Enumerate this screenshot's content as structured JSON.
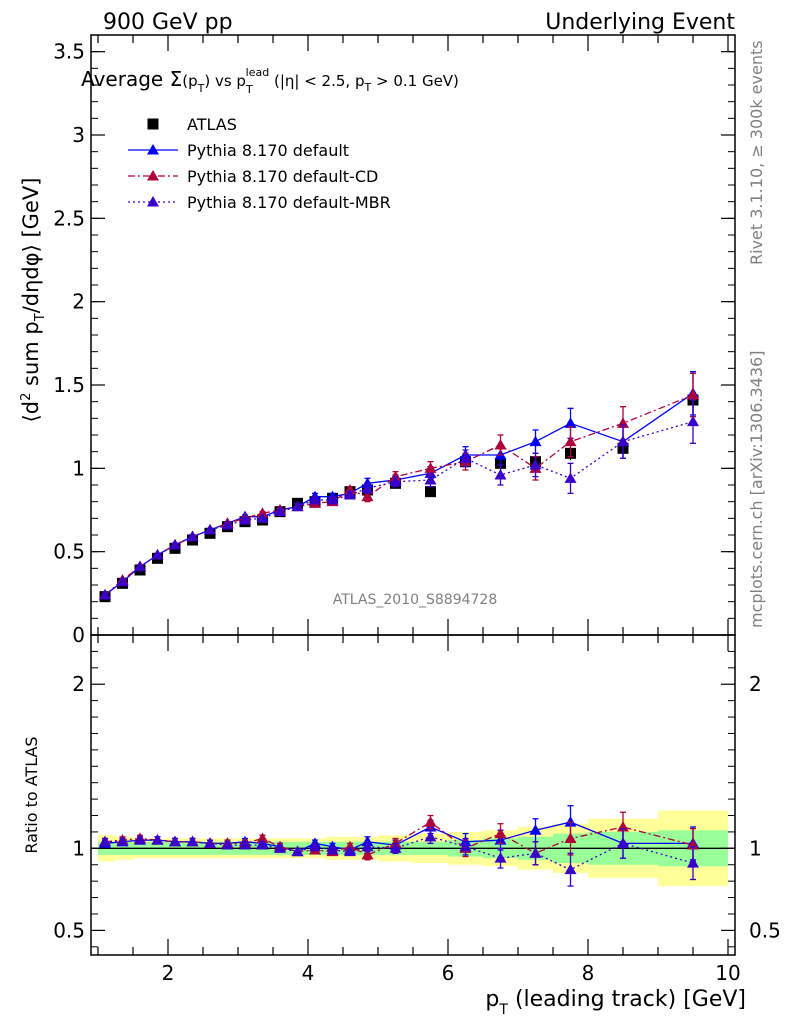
{
  "header": {
    "left": "900 GeV pp",
    "right": "Underlying Event"
  },
  "side_labels": {
    "rivet": "Rivet 3.1.10, ≥ 300k events",
    "mcplots": "mcplots.cern.ch [arXiv:1306.3436]"
  },
  "watermark": "ATLAS_2010_S8894728",
  "chart_data": [
    {
      "type": "scatter",
      "title": "Average Σ(p_T) vs p_T^lead (|η| < 2.5, p_T > 0.1 GeV)",
      "ylabel": "⟨d² sum p_T/dηdφ⟩ [GeV]",
      "xlim": [
        0.9,
        10.1
      ],
      "ylim": [
        0,
        3.6
      ],
      "y_ticks": [
        "0",
        "0.5",
        "1",
        "1.5",
        "2",
        "2.5",
        "3",
        "3.5"
      ],
      "legend_position": "top-left",
      "x": [
        1.1,
        1.35,
        1.6,
        1.85,
        2.1,
        2.35,
        2.6,
        2.85,
        3.1,
        3.35,
        3.6,
        3.85,
        4.1,
        4.35,
        4.6,
        4.85,
        5.25,
        5.75,
        6.25,
        6.75,
        7.25,
        7.75,
        8.5,
        9.5
      ],
      "series": [
        {
          "name": "ATLAS",
          "color": "#000000",
          "marker": "square",
          "y": [
            0.23,
            0.31,
            0.39,
            0.46,
            0.52,
            0.57,
            0.61,
            0.65,
            0.68,
            0.69,
            0.74,
            0.79,
            0.8,
            0.82,
            0.86,
            0.87,
            0.91,
            0.86,
            1.04,
            1.03,
            1.04,
            1.09,
            1.12,
            1.41
          ],
          "err": [
            0.01,
            0.01,
            0.01,
            0.01,
            0.01,
            0.01,
            0.01,
            0.01,
            0.01,
            0.01,
            0.01,
            0.01,
            0.01,
            0.01,
            0.01,
            0.02,
            0.02,
            0.02,
            0.03,
            0.03,
            0.04,
            0.04,
            0.05,
            0.08
          ]
        },
        {
          "name": "Pythia 8.170 default",
          "color": "#0000ff",
          "marker": "triangle",
          "line": "solid",
          "y": [
            0.24,
            0.32,
            0.41,
            0.48,
            0.54,
            0.59,
            0.63,
            0.67,
            0.71,
            0.71,
            0.75,
            0.77,
            0.83,
            0.83,
            0.85,
            0.91,
            0.93,
            0.97,
            1.08,
            1.08,
            1.16,
            1.27,
            1.16,
            1.45
          ],
          "err": [
            0.01,
            0.01,
            0.01,
            0.01,
            0.01,
            0.01,
            0.01,
            0.01,
            0.01,
            0.01,
            0.01,
            0.02,
            0.02,
            0.02,
            0.02,
            0.03,
            0.03,
            0.04,
            0.05,
            0.06,
            0.07,
            0.09,
            0.1,
            0.13
          ]
        },
        {
          "name": "Pythia 8.170 default-CD",
          "color": "#b0003a",
          "marker": "triangle",
          "line": "dashdot",
          "y": [
            0.24,
            0.33,
            0.41,
            0.48,
            0.54,
            0.59,
            0.63,
            0.67,
            0.7,
            0.73,
            0.75,
            0.77,
            0.79,
            0.8,
            0.87,
            0.83,
            0.95,
            1.0,
            1.04,
            1.14,
            1.0,
            1.16,
            1.27,
            1.44
          ],
          "err": [
            0.01,
            0.01,
            0.01,
            0.01,
            0.01,
            0.01,
            0.01,
            0.01,
            0.01,
            0.01,
            0.01,
            0.02,
            0.02,
            0.02,
            0.02,
            0.03,
            0.03,
            0.04,
            0.05,
            0.06,
            0.07,
            0.09,
            0.1,
            0.13
          ]
        },
        {
          "name": "Pythia 8.170 default-MBR",
          "color": "#3a00c8",
          "marker": "triangle",
          "line": "dotted",
          "y": [
            0.24,
            0.32,
            0.41,
            0.48,
            0.54,
            0.59,
            0.63,
            0.66,
            0.69,
            0.7,
            0.74,
            0.77,
            0.81,
            0.81,
            0.84,
            0.88,
            0.92,
            0.93,
            1.06,
            0.96,
            1.02,
            0.94,
            1.16,
            1.28
          ],
          "err": [
            0.01,
            0.01,
            0.01,
            0.01,
            0.01,
            0.01,
            0.01,
            0.01,
            0.01,
            0.01,
            0.01,
            0.02,
            0.02,
            0.02,
            0.02,
            0.03,
            0.03,
            0.04,
            0.05,
            0.06,
            0.07,
            0.09,
            0.1,
            0.13
          ]
        }
      ]
    },
    {
      "type": "scatter",
      "ylabel": "Ratio to ATLAS",
      "xlabel": "p_T (leading track) [GeV]",
      "xlim": [
        0.9,
        10.1
      ],
      "ylim": [
        0.35,
        2.3
      ],
      "y_ticks": [
        "0.5",
        "1",
        "2"
      ],
      "x_ticks": [
        "2",
        "4",
        "6",
        "8",
        "10"
      ],
      "band_edges": [
        1.0,
        1.25,
        1.5,
        1.75,
        2.0,
        2.25,
        2.5,
        2.75,
        3.0,
        3.25,
        3.5,
        3.75,
        4.0,
        4.25,
        4.5,
        4.75,
        5.0,
        5.5,
        6.0,
        6.5,
        7.0,
        7.5,
        8.0,
        9.0,
        10.0
      ],
      "band_green": [
        0.04,
        0.04,
        0.04,
        0.04,
        0.04,
        0.04,
        0.04,
        0.04,
        0.04,
        0.04,
        0.04,
        0.04,
        0.04,
        0.04,
        0.04,
        0.04,
        0.04,
        0.04,
        0.05,
        0.06,
        0.07,
        0.09,
        0.1,
        0.11
      ],
      "band_yellow": [
        0.08,
        0.07,
        0.06,
        0.06,
        0.06,
        0.06,
        0.06,
        0.06,
        0.06,
        0.06,
        0.06,
        0.06,
        0.06,
        0.07,
        0.07,
        0.07,
        0.08,
        0.09,
        0.1,
        0.11,
        0.13,
        0.15,
        0.18,
        0.23
      ],
      "series": [
        {
          "name": "Pythia 8.170 default",
          "color": "#0000ff",
          "line": "solid",
          "y": [
            1.03,
            1.04,
            1.05,
            1.05,
            1.04,
            1.04,
            1.03,
            1.03,
            1.04,
            1.03,
            1.01,
            0.98,
            1.03,
            1.01,
            0.99,
            1.04,
            1.02,
            1.13,
            1.04,
            1.05,
            1.11,
            1.16,
            1.03,
            1.03
          ],
          "err": [
            0.02,
            0.02,
            0.02,
            0.02,
            0.02,
            0.02,
            0.02,
            0.02,
            0.02,
            0.02,
            0.02,
            0.02,
            0.02,
            0.02,
            0.02,
            0.03,
            0.03,
            0.04,
            0.05,
            0.06,
            0.07,
            0.1,
            0.09,
            0.1
          ]
        },
        {
          "name": "Pythia 8.170 default-CD",
          "color": "#b0003a",
          "line": "dashdot",
          "y": [
            1.04,
            1.05,
            1.06,
            1.05,
            1.04,
            1.04,
            1.03,
            1.03,
            1.03,
            1.06,
            1.01,
            0.98,
            0.99,
            0.98,
            1.01,
            0.96,
            1.03,
            1.16,
            1.0,
            1.09,
            0.97,
            1.06,
            1.13,
            1.02
          ],
          "err": [
            0.02,
            0.02,
            0.02,
            0.02,
            0.02,
            0.02,
            0.02,
            0.02,
            0.02,
            0.02,
            0.02,
            0.02,
            0.02,
            0.02,
            0.02,
            0.03,
            0.03,
            0.04,
            0.05,
            0.06,
            0.07,
            0.1,
            0.09,
            0.1
          ]
        },
        {
          "name": "Pythia 8.170 default-MBR",
          "color": "#3a00c8",
          "line": "dotted",
          "y": [
            1.04,
            1.04,
            1.05,
            1.05,
            1.04,
            1.04,
            1.03,
            1.02,
            1.02,
            1.02,
            1.0,
            0.98,
            1.01,
            0.99,
            0.98,
            1.01,
            1.0,
            1.07,
            1.01,
            0.94,
            0.97,
            0.87,
            1.03,
            0.91
          ],
          "err": [
            0.02,
            0.02,
            0.02,
            0.02,
            0.02,
            0.02,
            0.02,
            0.02,
            0.02,
            0.02,
            0.02,
            0.02,
            0.02,
            0.02,
            0.02,
            0.03,
            0.03,
            0.04,
            0.05,
            0.06,
            0.07,
            0.1,
            0.09,
            0.1
          ]
        }
      ]
    }
  ]
}
